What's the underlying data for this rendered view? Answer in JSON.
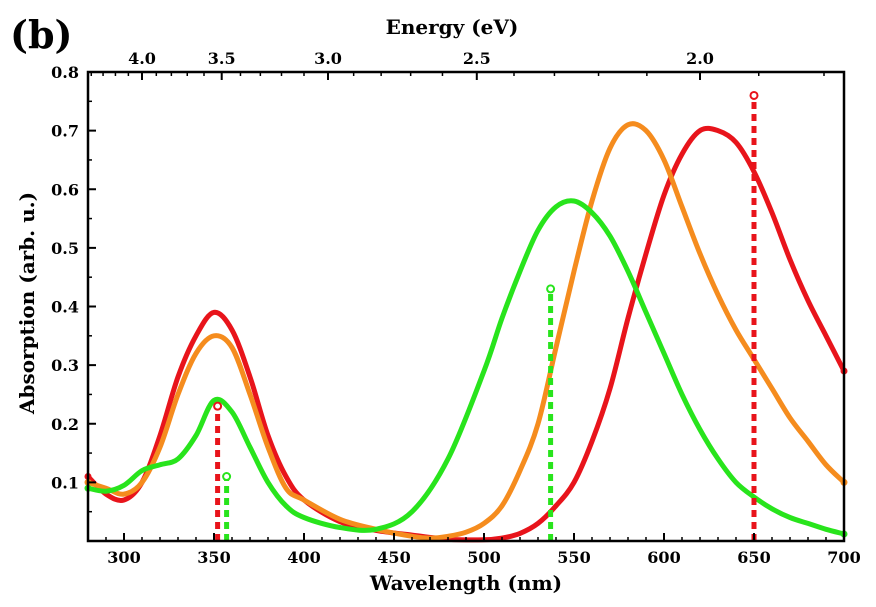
{
  "panel_label": "(b)",
  "colors": {
    "red": "#e8141b",
    "orange": "#f58c1e",
    "green": "#28e41c",
    "axis": "#000000"
  },
  "chart_data": {
    "type": "line",
    "title": "",
    "xlabel": "Wavelength (nm)",
    "ylabel": "Absorption (arb. u.)",
    "x2label": "Energy (eV)",
    "xlim": [
      280,
      700
    ],
    "ylim": [
      0.0,
      0.8
    ],
    "grid": false,
    "legend": "none",
    "x_ticks": [
      300,
      350,
      400,
      450,
      500,
      550,
      600,
      650,
      700
    ],
    "x_tick_labels": [
      "300",
      "350",
      "400",
      "450",
      "500",
      "550",
      "600",
      "650",
      "700"
    ],
    "y_ticks": [
      0.1,
      0.2,
      0.3,
      0.4,
      0.5,
      0.6,
      0.7,
      0.8
    ],
    "y_tick_labels": [
      "0.1",
      "0.2",
      "0.3",
      "0.4",
      "0.5",
      "0.6",
      "0.7",
      "0.8"
    ],
    "x2_ticks_ev": [
      4.0,
      3.5,
      3.0,
      2.5,
      2.0
    ],
    "x2_tick_labels": [
      "4.0",
      "3.5",
      "3.0",
      "2.5",
      "2.0"
    ],
    "series": [
      {
        "color": "red",
        "x": [
          280,
          290,
          300,
          310,
          320,
          330,
          340,
          350,
          360,
          370,
          380,
          390,
          400,
          420,
          440,
          460,
          480,
          500,
          510,
          520,
          530,
          540,
          550,
          560,
          570,
          580,
          590,
          600,
          610,
          620,
          630,
          640,
          650,
          660,
          670,
          680,
          690,
          700
        ],
        "y": [
          0.11,
          0.08,
          0.07,
          0.1,
          0.18,
          0.28,
          0.35,
          0.39,
          0.36,
          0.28,
          0.18,
          0.11,
          0.07,
          0.033,
          0.018,
          0.01,
          0.003,
          0.002,
          0.005,
          0.013,
          0.03,
          0.06,
          0.1,
          0.17,
          0.26,
          0.38,
          0.49,
          0.59,
          0.66,
          0.7,
          0.7,
          0.68,
          0.63,
          0.56,
          0.48,
          0.41,
          0.35,
          0.29
        ]
      },
      {
        "color": "orange",
        "x": [
          280,
          290,
          300,
          310,
          320,
          330,
          340,
          350,
          360,
          370,
          380,
          390,
          400,
          420,
          440,
          460,
          470,
          480,
          490,
          500,
          510,
          520,
          530,
          540,
          550,
          560,
          570,
          580,
          590,
          600,
          610,
          620,
          630,
          640,
          650,
          660,
          670,
          680,
          690,
          700
        ],
        "y": [
          0.1,
          0.09,
          0.08,
          0.1,
          0.16,
          0.25,
          0.32,
          0.35,
          0.33,
          0.25,
          0.16,
          0.09,
          0.07,
          0.037,
          0.02,
          0.008,
          0.005,
          0.008,
          0.015,
          0.03,
          0.06,
          0.12,
          0.2,
          0.33,
          0.46,
          0.58,
          0.67,
          0.71,
          0.7,
          0.65,
          0.57,
          0.49,
          0.42,
          0.36,
          0.31,
          0.26,
          0.21,
          0.17,
          0.13,
          0.1
        ]
      },
      {
        "color": "green",
        "x": [
          280,
          290,
          300,
          310,
          320,
          330,
          340,
          350,
          360,
          370,
          380,
          390,
          400,
          420,
          440,
          460,
          480,
          500,
          510,
          520,
          530,
          540,
          550,
          560,
          570,
          580,
          590,
          600,
          610,
          620,
          630,
          640,
          650,
          660,
          670,
          680,
          690,
          700
        ],
        "y": [
          0.09,
          0.085,
          0.095,
          0.12,
          0.13,
          0.14,
          0.18,
          0.24,
          0.22,
          0.16,
          0.1,
          0.06,
          0.04,
          0.023,
          0.02,
          0.05,
          0.14,
          0.29,
          0.38,
          0.46,
          0.53,
          0.57,
          0.58,
          0.56,
          0.52,
          0.46,
          0.39,
          0.32,
          0.25,
          0.19,
          0.14,
          0.1,
          0.075,
          0.055,
          0.04,
          0.03,
          0.02,
          0.012
        ]
      }
    ],
    "markers": [
      {
        "color": "red",
        "x": 352,
        "y": 0.23
      },
      {
        "color": "green",
        "x": 357,
        "y": 0.11
      },
      {
        "color": "green",
        "x": 537,
        "y": 0.43
      },
      {
        "color": "red",
        "x": 650,
        "y": 0.76
      }
    ]
  }
}
